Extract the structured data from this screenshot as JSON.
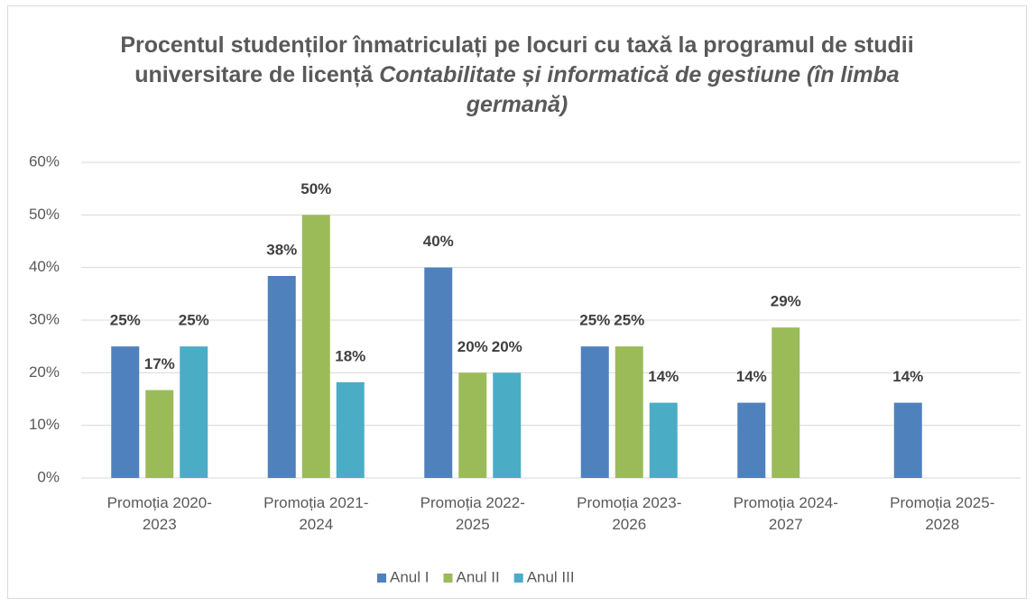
{
  "chart_data": {
    "type": "bar",
    "title": "Procentul studenților înmatriculați pe locuri cu taxă la programul de studii universitare de licență",
    "title_italic": "Contabilitate și informatică de gestiune (în limba germană)",
    "categories": [
      "Promoția 2020-2023",
      "Promoția 2021-2024",
      "Promoția 2022-2025",
      "Promoția 2023-2026",
      "Promoția 2024-2027",
      "Promoția 2025-2028"
    ],
    "series": [
      {
        "name": "Anul I",
        "color": "#4f81bd",
        "values": [
          25,
          38.4,
          40,
          25,
          14.3,
          14.3
        ],
        "value_labels": [
          "25%",
          "38%",
          "40%",
          "25%",
          "14%",
          "14%"
        ]
      },
      {
        "name": "Anul II",
        "color": "#9bbb59",
        "values": [
          16.7,
          50,
          20,
          25,
          28.6,
          null
        ],
        "value_labels": [
          "17%",
          "50%",
          "20%",
          "25%",
          "29%",
          null
        ]
      },
      {
        "name": "Anul III",
        "color": "#4bacc6",
        "values": [
          25,
          18.2,
          20,
          14.3,
          null,
          null
        ],
        "value_labels": [
          "25%",
          "18%",
          "20%",
          "14%",
          null,
          null
        ]
      }
    ],
    "ylim": [
      0,
      60
    ],
    "yticks": [
      {
        "value": 0,
        "label": "0%"
      },
      {
        "value": 10,
        "label": "10%"
      },
      {
        "value": 20,
        "label": "20%"
      },
      {
        "value": 30,
        "label": "30%"
      },
      {
        "value": 40,
        "label": "40%"
      },
      {
        "value": 50,
        "label": "50%"
      },
      {
        "value": 60,
        "label": "60%"
      }
    ],
    "grid": true,
    "legend": "bottom"
  }
}
